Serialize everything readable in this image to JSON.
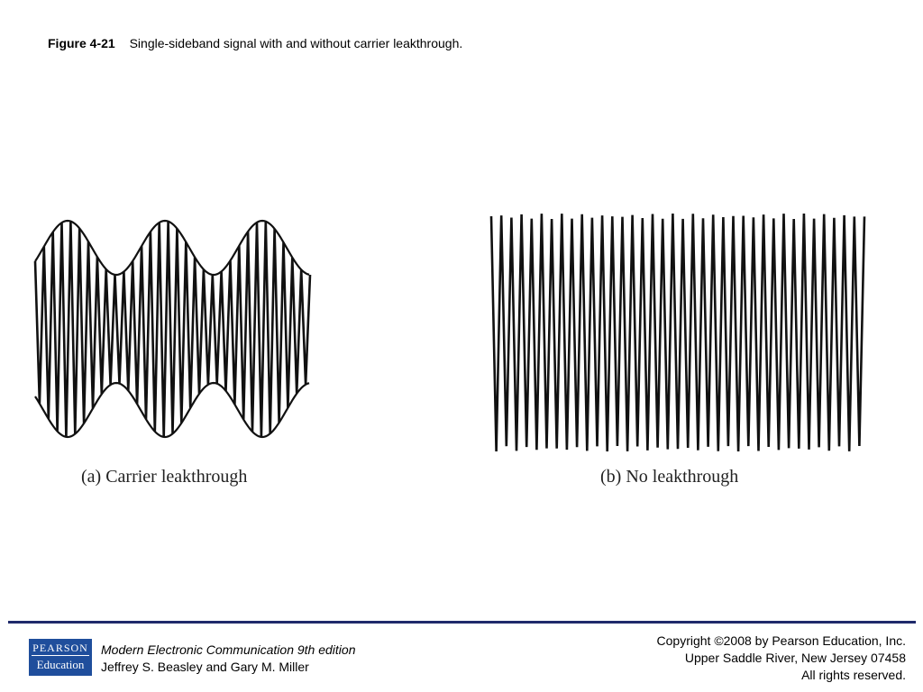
{
  "figure": {
    "number": "Figure 4-21",
    "caption": "Single-sideband signal with and without carrier leakthrough."
  },
  "panels": [
    {
      "label": "(a) Carrier leakthrough"
    },
    {
      "label": "(b) No leakthrough"
    }
  ],
  "footer": {
    "logo_top": "PEARSON",
    "logo_bottom": "Education",
    "book_title": "Modern Electronic Communication 9th edition",
    "authors": "Jeffrey S. Beasley and Gary M. Miller",
    "copyright_lines": [
      "Copyright ©2008 by Pearson Education, Inc.",
      "Upper Saddle River, New Jersey 07458",
      "All rights reserved."
    ],
    "accent_color": "#1f2a6b",
    "logo_color": "#1f4e9c"
  }
}
